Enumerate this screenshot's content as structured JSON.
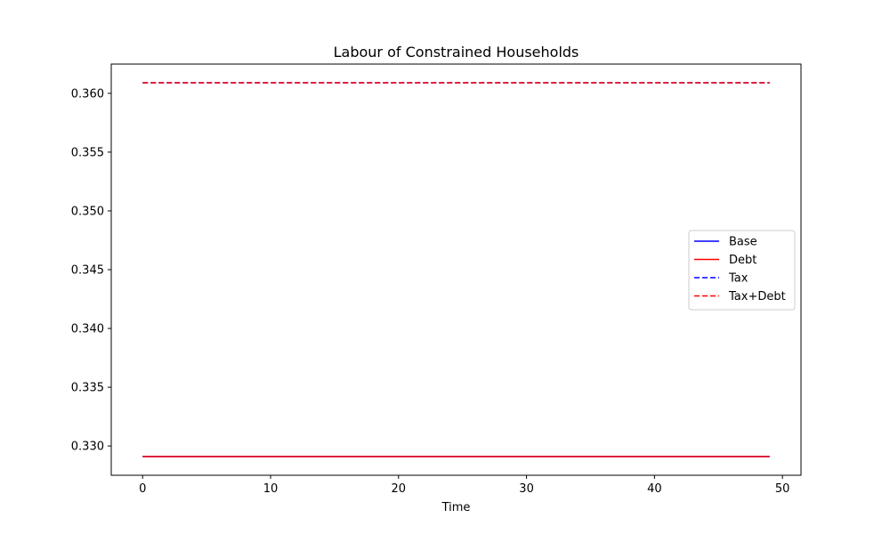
{
  "chart_data": {
    "type": "line",
    "title": "Labour of Constrained Households",
    "xlabel": "Time",
    "ylabel": "",
    "xlim": [
      -2.45,
      51.45
    ],
    "ylim": [
      0.32751,
      0.36249
    ],
    "xticks": [
      0,
      10,
      20,
      30,
      40,
      50
    ],
    "yticks": [
      0.33,
      0.335,
      0.34,
      0.345,
      0.35,
      0.355,
      0.36
    ],
    "ytick_labels": [
      "0.330",
      "0.335",
      "0.340",
      "0.345",
      "0.350",
      "0.355",
      "0.360"
    ],
    "x_range": [
      0,
      49
    ],
    "grid": false,
    "legend_position": "center-right",
    "series": [
      {
        "name": "Base",
        "color": "#0000ff",
        "dash": "solid",
        "value": 0.3291
      },
      {
        "name": "Debt",
        "color": "#ff0000",
        "dash": "solid",
        "value": 0.3291
      },
      {
        "name": "Tax",
        "color": "#0000ff",
        "dash": "dashed",
        "value": 0.3609
      },
      {
        "name": "Tax+Debt",
        "color": "#ff0000",
        "dash": "dashed",
        "value": 0.3609
      }
    ]
  }
}
